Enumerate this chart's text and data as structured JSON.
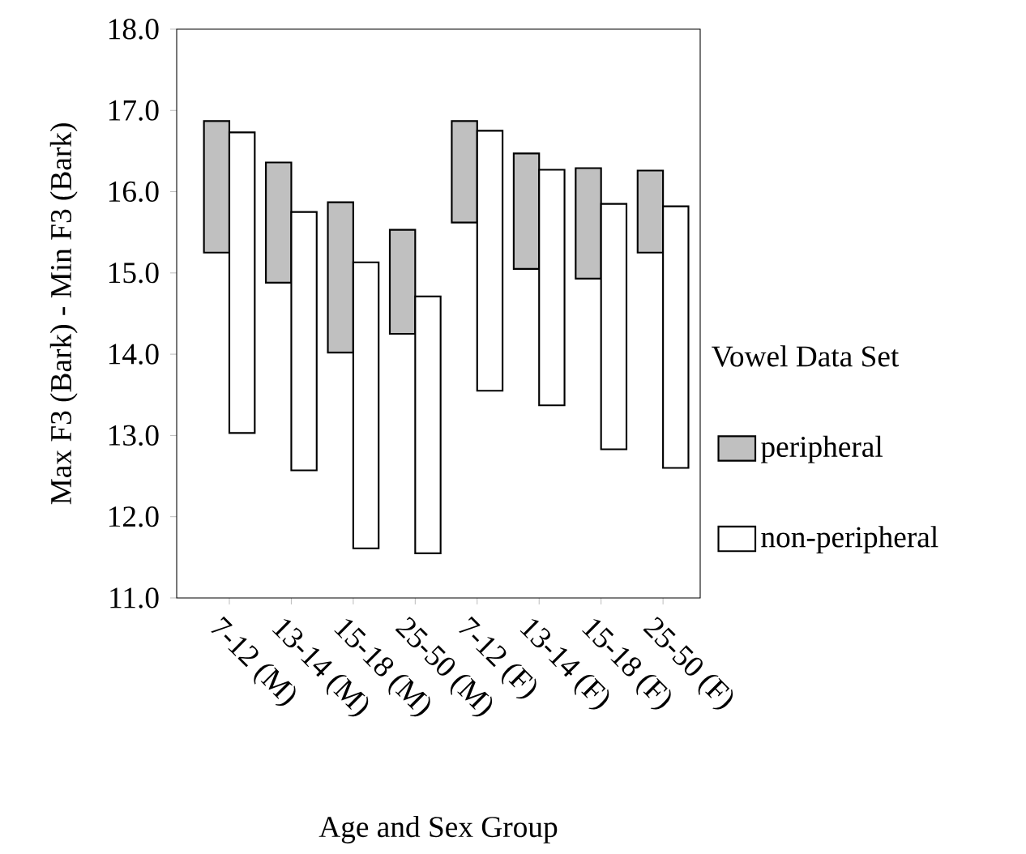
{
  "chart_data": {
    "type": "bar",
    "xlabel": "Age and Sex Group",
    "ylabel": "Max F3 (Bark)  -  Min F3 (Bark)",
    "legend_title": "Vowel Data Set",
    "categories": [
      "7-12 (M)",
      "13-14 (M)",
      "15-18 (M)",
      "25-50 (M)",
      "7-12 (F)",
      "13-14 (F)",
      "15-18 (F)",
      "25-50 (F)"
    ],
    "series": [
      {
        "name": "peripheral",
        "color": "#c0c0c0",
        "base": [
          15.25,
          14.88,
          14.02,
          14.25,
          15.62,
          15.05,
          14.93,
          15.25
        ],
        "values": [
          1.62,
          1.48,
          1.85,
          1.28,
          1.25,
          1.42,
          1.36,
          1.01
        ]
      },
      {
        "name": "non-peripheral",
        "color": "#ffffff",
        "base": [
          13.03,
          12.57,
          11.61,
          11.55,
          13.55,
          13.37,
          12.83,
          12.6
        ],
        "values": [
          3.7,
          3.18,
          3.52,
          3.16,
          3.2,
          2.9,
          3.02,
          3.22
        ]
      }
    ],
    "ylim": [
      11,
      18
    ],
    "yticks": [
      {
        "value": 11,
        "label": "11.0"
      },
      {
        "value": 12,
        "label": "12.0"
      },
      {
        "value": 13,
        "label": "13.0"
      },
      {
        "value": 14,
        "label": "14.0"
      },
      {
        "value": 15,
        "label": "15.0"
      },
      {
        "value": 16,
        "label": "16.0"
      },
      {
        "value": 17,
        "label": "17.0"
      },
      {
        "value": 18,
        "label": "18.0"
      }
    ],
    "legend": "right",
    "grid": false
  }
}
